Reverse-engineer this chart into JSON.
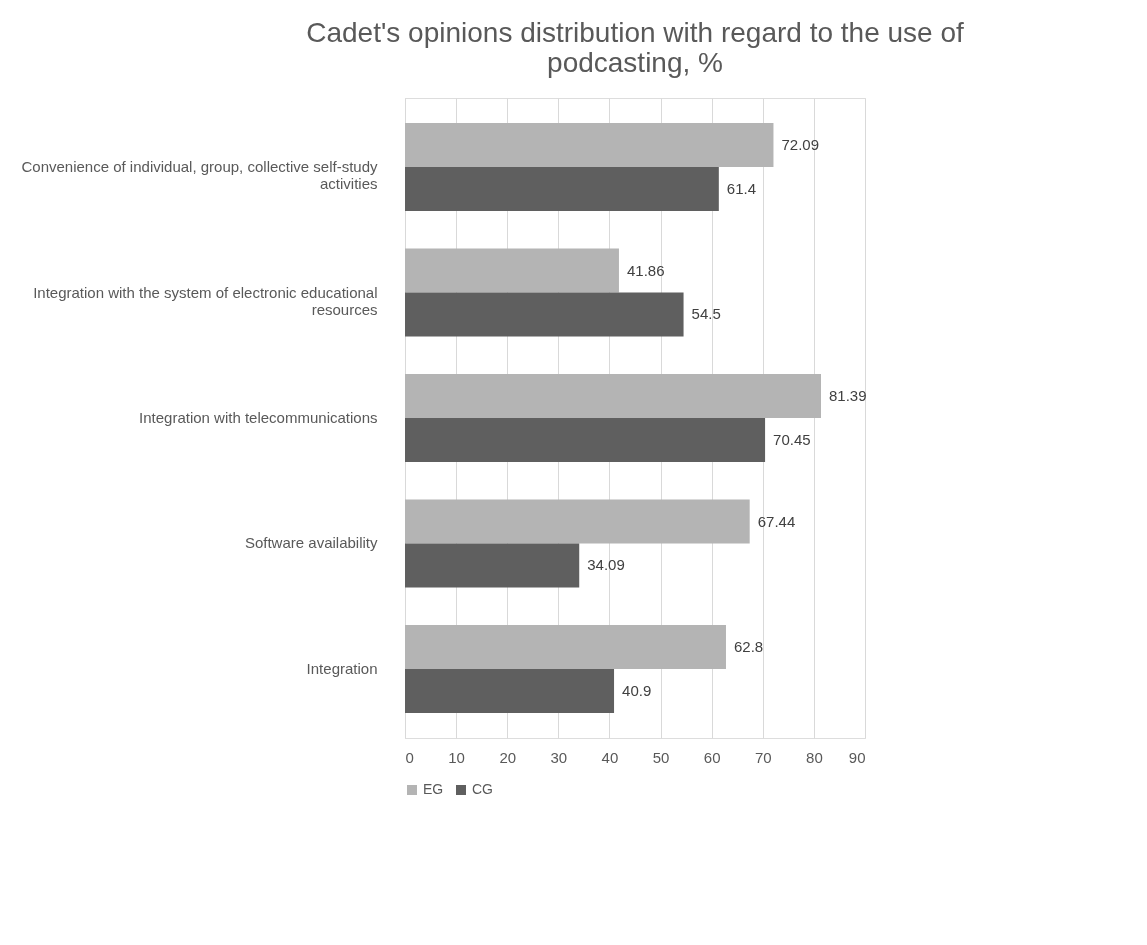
{
  "chart_data": {
    "type": "bar",
    "orientation": "horizontal",
    "title": "Cadet's opinions distribution with regard to the use of podcasting, %",
    "categories": [
      "Convenience of individual, group, collective self-study activities",
      "Integration with the system of electronic educational resources",
      "Integration with telecommunications",
      "Software availability",
      "Integration"
    ],
    "series": [
      {
        "name": "EG",
        "color": "#b4b4b4",
        "values": [
          72.09,
          41.86,
          81.39,
          67.44,
          62.8
        ]
      },
      {
        "name": "CG",
        "color": "#5f5f5f",
        "values": [
          61.4,
          54.5,
          70.45,
          34.09,
          40.9
        ]
      }
    ],
    "xlim": [
      0,
      90
    ],
    "xticks": [
      0,
      10,
      20,
      30,
      40,
      50,
      60,
      70,
      80,
      90
    ],
    "grid": "x",
    "legend": "bottom",
    "data_labels": true
  }
}
